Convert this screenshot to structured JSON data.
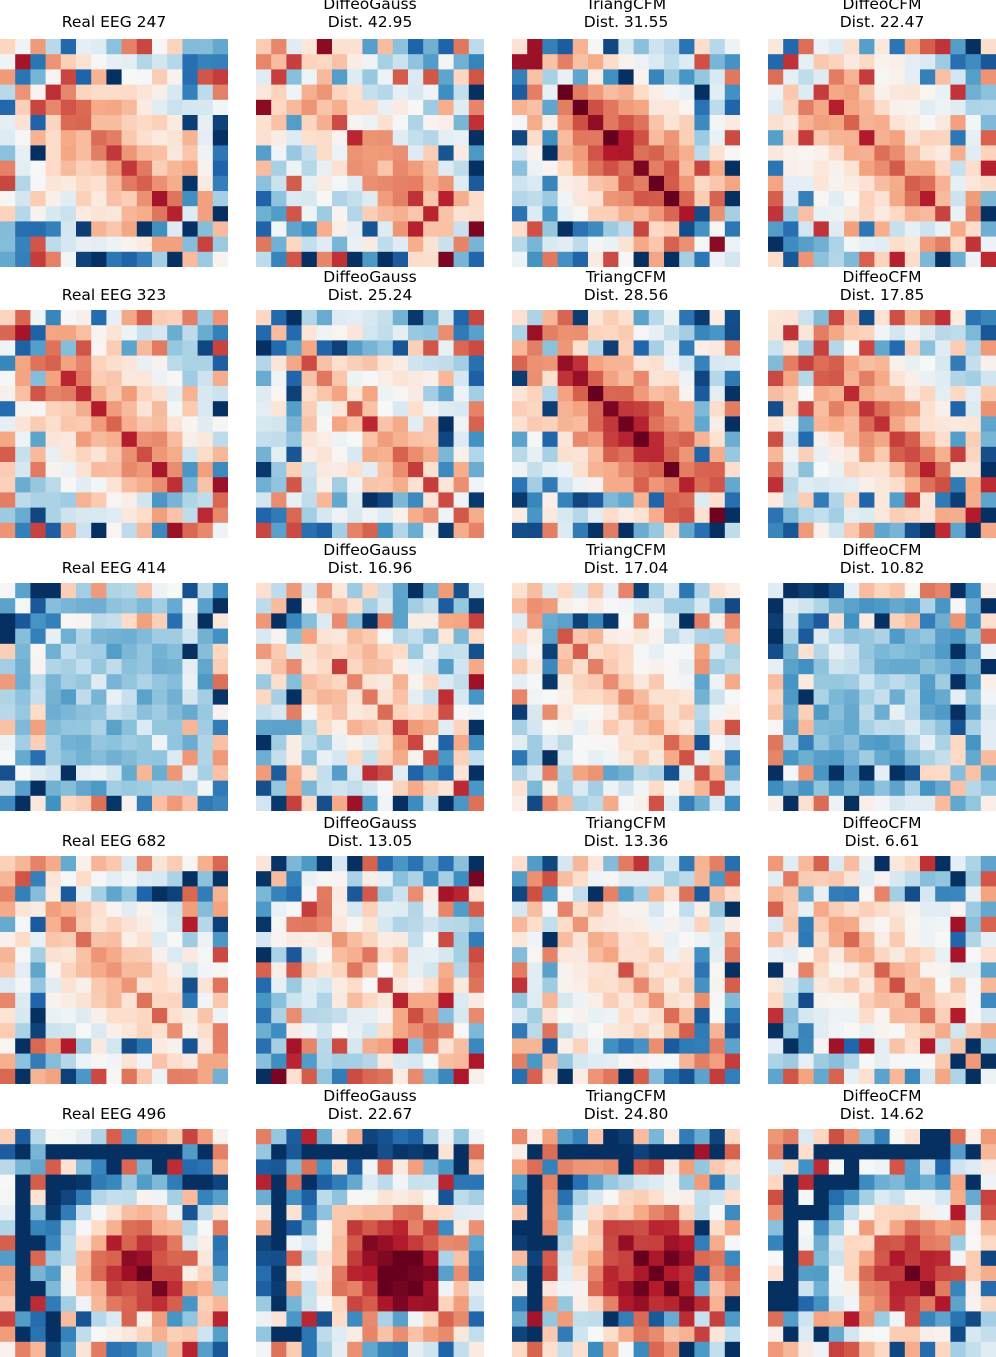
{
  "chart_data": {
    "type": "heatmap",
    "colormap": "RdBu_r (red = high, blue = low)",
    "rows": [
      {
        "panels": [
          {
            "title": "Real EEG 247",
            "subtitle": "",
            "distance": "",
            "variant": "tight-diag"
          },
          {
            "title": "DiffeoGauss",
            "subtitle": "Dist. 42.95",
            "distance": "42.95",
            "variant": "noisy"
          },
          {
            "title": "TriangCFM",
            "subtitle": "Dist. 31.55",
            "distance": "31.55",
            "variant": "strong-diag"
          },
          {
            "title": "DiffeoCFM",
            "subtitle": "Dist. 22.47",
            "distance": "22.47",
            "variant": "tight-diag"
          }
        ]
      },
      {
        "panels": [
          {
            "title": "Real EEG 323",
            "subtitle": "",
            "distance": "",
            "variant": "tight-diag"
          },
          {
            "title": "DiffeoGauss",
            "subtitle": "Dist. 25.24",
            "distance": "25.24",
            "variant": "noisy"
          },
          {
            "title": "TriangCFM",
            "subtitle": "Dist. 28.56",
            "distance": "28.56",
            "variant": "strong-diag"
          },
          {
            "title": "DiffeoCFM",
            "subtitle": "Dist. 17.85",
            "distance": "17.85",
            "variant": "tight-diag"
          }
        ]
      },
      {
        "panels": [
          {
            "title": "Real EEG 414",
            "subtitle": "",
            "distance": "",
            "variant": "blue"
          },
          {
            "title": "DiffeoGauss",
            "subtitle": "Dist. 16.96",
            "distance": "16.96",
            "variant": "noisy"
          },
          {
            "title": "TriangCFM",
            "subtitle": "Dist. 17.04",
            "distance": "17.04",
            "variant": "light-diag"
          },
          {
            "title": "DiffeoCFM",
            "subtitle": "Dist. 10.82",
            "distance": "10.82",
            "variant": "blue"
          }
        ]
      },
      {
        "panels": [
          {
            "title": "Real EEG 682",
            "subtitle": "",
            "distance": "",
            "variant": "light-diag"
          },
          {
            "title": "DiffeoGauss",
            "subtitle": "Dist. 13.05",
            "distance": "13.05",
            "variant": "noisy"
          },
          {
            "title": "TriangCFM",
            "subtitle": "Dist. 13.36",
            "distance": "13.36",
            "variant": "light-diag"
          },
          {
            "title": "DiffeoCFM",
            "subtitle": "Dist. 6.61",
            "distance": "6.61",
            "variant": "light-diag"
          }
        ]
      },
      {
        "panels": [
          {
            "title": "Real EEG 496",
            "subtitle": "",
            "distance": "",
            "variant": "blob"
          },
          {
            "title": "DiffeoGauss",
            "subtitle": "Dist. 22.67",
            "distance": "22.67",
            "variant": "strong-blob"
          },
          {
            "title": "TriangCFM",
            "subtitle": "Dist. 24.80",
            "distance": "24.80",
            "variant": "strong-blob"
          },
          {
            "title": "DiffeoCFM",
            "subtitle": "Dist. 14.62",
            "distance": "14.62",
            "variant": "blob"
          }
        ]
      }
    ]
  }
}
